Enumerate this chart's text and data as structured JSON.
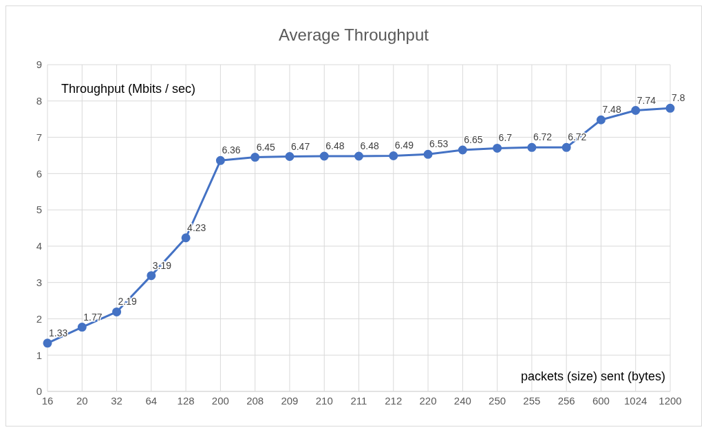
{
  "chart_data": {
    "type": "line",
    "title": "Average Throughput",
    "xlabel": "packets (size) sent (bytes)",
    "ylabel": "Throughput (Mbits / sec)",
    "categories": [
      "16",
      "20",
      "32",
      "64",
      "128",
      "200",
      "208",
      "209",
      "210",
      "211",
      "212",
      "220",
      "240",
      "250",
      "255",
      "256",
      "600",
      "1024",
      "1200"
    ],
    "series": [
      {
        "color": "#4472c4",
        "values": [
          1.33,
          1.77,
          2.19,
          3.19,
          4.23,
          6.36,
          6.45,
          6.47,
          6.48,
          6.48,
          6.49,
          6.53,
          6.65,
          6.7,
          6.72,
          6.72,
          7.48,
          7.74,
          7.8
        ]
      }
    ],
    "ylim": [
      0,
      9
    ],
    "yticks": [
      0,
      1,
      2,
      3,
      4,
      5,
      6,
      7,
      8,
      9
    ],
    "grid": true,
    "marker": "circle",
    "line_style": "solid",
    "data_labels": true,
    "legend": false
  }
}
